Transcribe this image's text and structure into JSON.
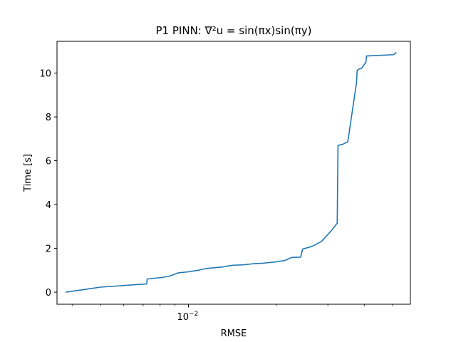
{
  "chart_data": {
    "type": "line",
    "title": "P1 PINN: ∇²u = sin(πx)sin(πy)",
    "xlabel": "RMSE",
    "ylabel": "Time [s]",
    "xscale": "log",
    "xlim": [
      0.00355,
      0.0575
    ],
    "ylim": [
      -0.55,
      11.45
    ],
    "grid": false,
    "x_major_ticks": [
      {
        "value": 0.01,
        "label": "10",
        "exp": "−2"
      }
    ],
    "x_minor_ticks": [
      0.004,
      0.005,
      0.006,
      0.007,
      0.008,
      0.009,
      0.02,
      0.03,
      0.04,
      0.05
    ],
    "y_ticks": [
      0,
      2,
      4,
      6,
      8,
      10
    ],
    "line_color": "#1f77b4",
    "series": [
      {
        "x": [
          0.0038,
          0.005,
          0.0072,
          0.00722,
          0.0081,
          0.0086,
          0.0089,
          0.0092,
          0.01,
          0.0109,
          0.0111,
          0.0117,
          0.0123,
          0.0131,
          0.0137,
          0.0142,
          0.0154,
          0.0167,
          0.0179,
          0.0198,
          0.0214,
          0.0225,
          0.0228,
          0.0242,
          0.0246,
          0.0265,
          0.0285,
          0.0308,
          0.0323,
          0.0325,
          0.0336,
          0.0351,
          0.0376,
          0.0378,
          0.0382,
          0.0392,
          0.0405,
          0.0407,
          0.0503,
          0.0515
        ],
        "y": [
          0.0,
          0.23,
          0.38,
          0.6,
          0.67,
          0.73,
          0.8,
          0.88,
          0.93,
          1.01,
          1.04,
          1.09,
          1.12,
          1.15,
          1.2,
          1.23,
          1.25,
          1.3,
          1.32,
          1.38,
          1.45,
          1.58,
          1.59,
          1.6,
          1.97,
          2.09,
          2.31,
          2.8,
          3.15,
          6.7,
          6.74,
          6.86,
          9.55,
          10.12,
          10.17,
          10.23,
          10.5,
          10.78,
          10.84,
          10.94
        ]
      }
    ]
  }
}
